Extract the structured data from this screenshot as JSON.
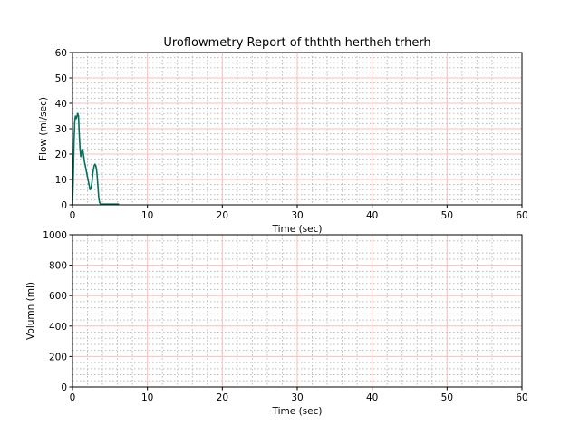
{
  "chart_data": [
    {
      "type": "line",
      "title": "Uroflowmetry Report of  ththth hertheh trherh",
      "xlabel": "Time (sec)",
      "ylabel": "Flow (ml/sec)",
      "xlim": [
        0,
        60
      ],
      "ylim": [
        0,
        60
      ],
      "xticks": [
        0,
        10,
        20,
        30,
        40,
        50,
        60
      ],
      "yticks": [
        0,
        10,
        20,
        30,
        40,
        50,
        60
      ],
      "grid": "major and minor",
      "line_color": "#007060",
      "grid_major_color": "#ffbbbb",
      "grid_minor_color": "#bbbbbb",
      "series": [
        {
          "x": [
            0,
            0.1,
            0.2,
            0.3,
            0.4,
            0.5,
            0.6,
            0.7,
            0.8,
            0.9,
            1.0,
            1.1,
            1.2,
            1.3,
            1.4,
            1.5,
            1.6,
            1.8,
            2.0,
            2.2,
            2.35,
            2.5,
            2.6,
            2.7,
            2.8,
            2.9,
            3.0,
            3.1,
            3.2,
            3.3,
            3.4,
            3.5,
            3.6,
            3.7,
            3.8,
            4.0,
            4.5,
            5.0,
            5.5,
            6.0,
            6.2
          ],
          "y": [
            0,
            10,
            25,
            33,
            35,
            34,
            35,
            36,
            35,
            28,
            22,
            19,
            20,
            22,
            21,
            19,
            17,
            14,
            11,
            8,
            6,
            7,
            9,
            12,
            14,
            15.5,
            16,
            15.5,
            14,
            11,
            7,
            3,
            1,
            0.5,
            0.3,
            0.3,
            0.3,
            0.3,
            0.3,
            0.3,
            0.3
          ]
        }
      ]
    },
    {
      "type": "line",
      "xlabel": "Time (sec)",
      "ylabel": "Volumn (ml)",
      "xlim": [
        0,
        60
      ],
      "ylim": [
        0,
        1000
      ],
      "xticks": [
        0,
        10,
        20,
        30,
        40,
        50,
        60
      ],
      "yticks": [
        0,
        200,
        400,
        600,
        800,
        1000
      ],
      "grid": "major and minor",
      "grid_major_color": "#ffbbbb",
      "grid_minor_color": "#bbbbbb",
      "series": []
    }
  ]
}
